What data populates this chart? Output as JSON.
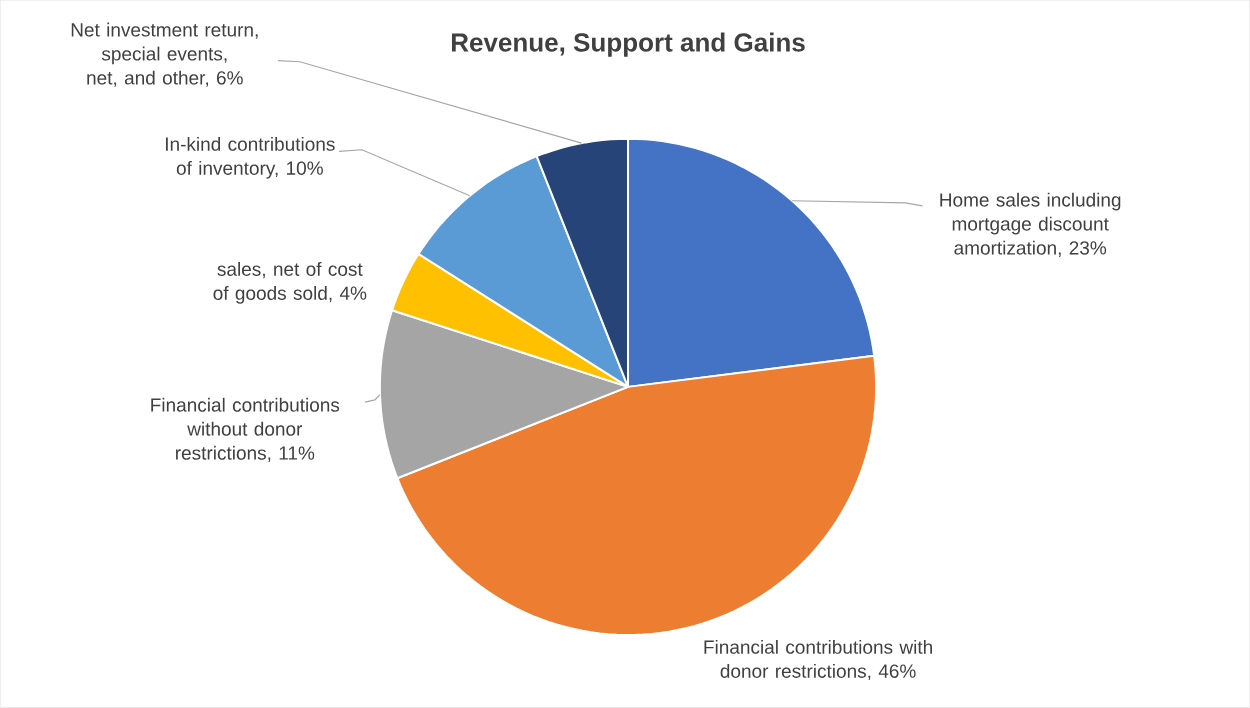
{
  "chart_data": {
    "type": "pie",
    "title": "Revenue, Support and Gains",
    "categories": [
      "Home sales including mortgage discount amortization, 23%",
      "Financial contributions with donor restrictions, 46%",
      "Financial contributions without donor restrictions, 11%",
      "sales, net of cost of goods sold, 4%",
      "In-kind contributions of inventory, 10%",
      "Net investment return, special events, net, and other, 6%"
    ],
    "values": [
      23,
      46,
      11,
      4,
      10,
      6
    ],
    "colors": [
      "#4472c4",
      "#ed7d31",
      "#a5a5a5",
      "#ffc000",
      "#5b9bd5",
      "#264478"
    ]
  }
}
